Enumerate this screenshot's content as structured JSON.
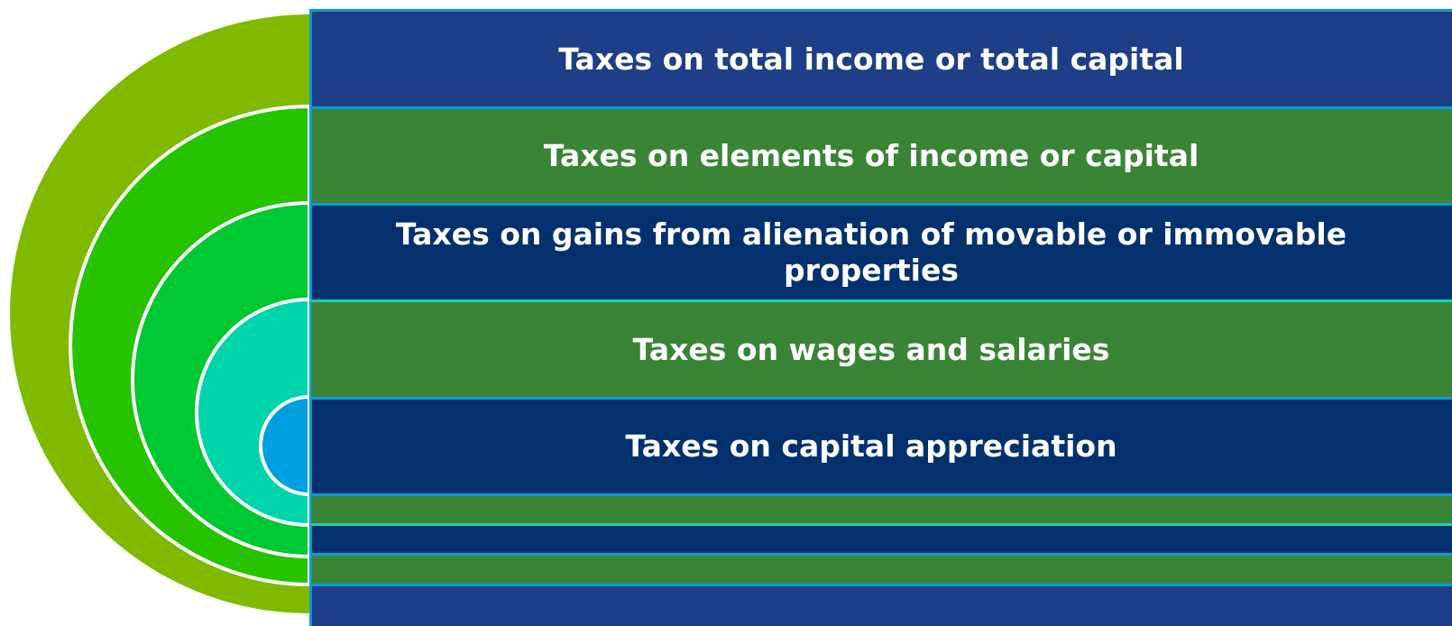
{
  "items": [
    "Taxes on total income or total capital",
    "Taxes on elements of income or capital",
    "Taxes on gains from alienation of movable or immovable properties",
    "Taxes on wages and salaries",
    "Taxes on capital appreciation"
  ]
}
